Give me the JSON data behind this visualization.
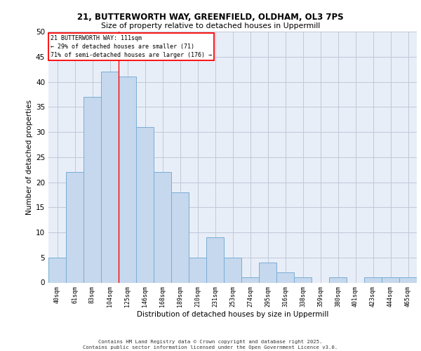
{
  "title1": "21, BUTTERWORTH WAY, GREENFIELD, OLDHAM, OL3 7PS",
  "title2": "Size of property relative to detached houses in Uppermill",
  "xlabel": "Distribution of detached houses by size in Uppermill",
  "ylabel": "Number of detached properties",
  "categories": [
    "40sqm",
    "61sqm",
    "83sqm",
    "104sqm",
    "125sqm",
    "146sqm",
    "168sqm",
    "189sqm",
    "210sqm",
    "231sqm",
    "253sqm",
    "274sqm",
    "295sqm",
    "316sqm",
    "338sqm",
    "359sqm",
    "380sqm",
    "401sqm",
    "423sqm",
    "444sqm",
    "465sqm"
  ],
  "values": [
    5,
    22,
    37,
    42,
    41,
    31,
    22,
    18,
    5,
    9,
    5,
    1,
    4,
    2,
    1,
    0,
    1,
    0,
    1,
    1,
    1
  ],
  "bar_color": "#c5d8ed",
  "bar_edge_color": "#7aadd4",
  "red_line_x": 3.5,
  "annotation_lines": [
    "21 BUTTERWORTH WAY: 111sqm",
    "← 29% of detached houses are smaller (71)",
    "71% of semi-detached houses are larger (176) →"
  ],
  "annotation_box_color": "white",
  "annotation_box_edge_color": "red",
  "ylim": [
    0,
    50
  ],
  "yticks": [
    0,
    5,
    10,
    15,
    20,
    25,
    30,
    35,
    40,
    45,
    50
  ],
  "grid_color": "#c0c8d8",
  "bg_color": "#e8eef8",
  "footer_line1": "Contains HM Land Registry data © Crown copyright and database right 2025.",
  "footer_line2": "Contains public sector information licensed under the Open Government Licence v3.0."
}
